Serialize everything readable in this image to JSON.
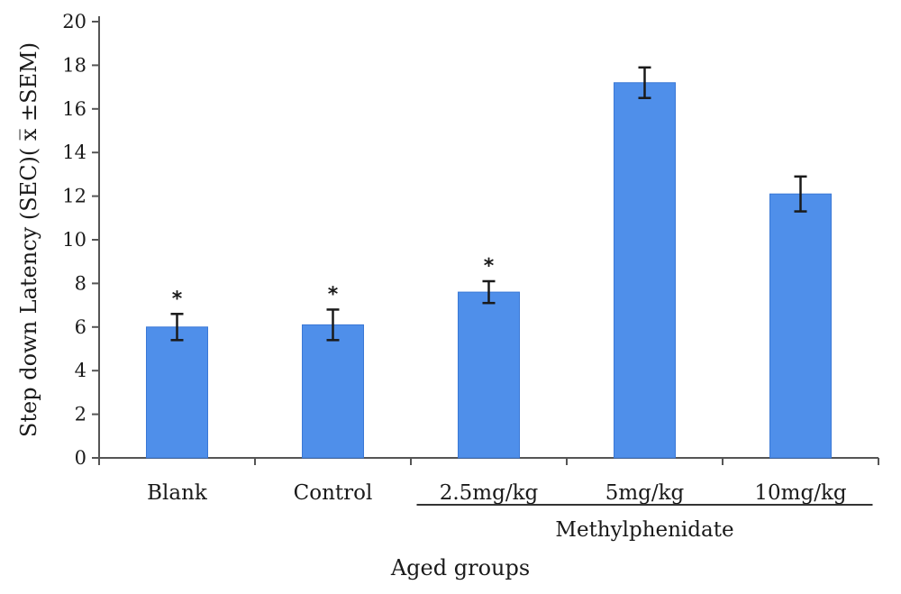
{
  "chart_data": {
    "type": "bar",
    "categories": [
      "Blank",
      "Control",
      "2.5mg/kg",
      "5mg/kg",
      "10mg/kg"
    ],
    "values": [
      6.0,
      6.1,
      7.6,
      17.2,
      12.1
    ],
    "error_plus_minus": [
      0.6,
      0.7,
      0.5,
      0.7,
      0.8
    ],
    "significance_marks": [
      "*",
      "*",
      "*",
      "",
      ""
    ],
    "group_label": "Methylphenidate",
    "group_categories": [
      "2.5mg/kg",
      "5mg/kg",
      "10mg/kg"
    ],
    "xlabel": "Aged groups",
    "ylabel": "Step down Latency (SEC)( x̅ ±SEM)",
    "ylim": [
      0,
      20
    ],
    "yticks": [
      "0",
      "2",
      "4",
      "6",
      "8",
      "10",
      "12",
      "14",
      "16",
      "18",
      "20"
    ],
    "grid": false,
    "legend": "none",
    "colors": {
      "bar": "#4f8fea",
      "bar_edge": "#3a78d6",
      "axis": "#555555",
      "error": "#1a1a1a"
    }
  }
}
